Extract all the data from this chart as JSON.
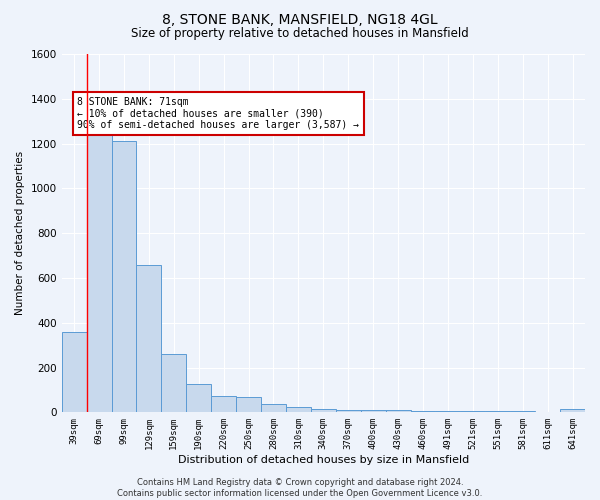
{
  "title": "8, STONE BANK, MANSFIELD, NG18 4GL",
  "subtitle": "Size of property relative to detached houses in Mansfield",
  "xlabel": "Distribution of detached houses by size in Mansfield",
  "ylabel": "Number of detached properties",
  "bar_labels": [
    "39sqm",
    "69sqm",
    "99sqm",
    "129sqm",
    "159sqm",
    "190sqm",
    "220sqm",
    "250sqm",
    "280sqm",
    "310sqm",
    "340sqm",
    "370sqm",
    "400sqm",
    "430sqm",
    "460sqm",
    "491sqm",
    "521sqm",
    "551sqm",
    "581sqm",
    "611sqm",
    "641sqm"
  ],
  "bar_values": [
    360,
    1250,
    1210,
    660,
    260,
    125,
    75,
    70,
    35,
    22,
    15,
    12,
    10,
    9,
    8,
    7,
    6,
    5,
    4,
    3,
    15
  ],
  "bar_color": "#c8d9ed",
  "bar_edge_color": "#5b9bd5",
  "ylim": [
    0,
    1600
  ],
  "yticks": [
    0,
    200,
    400,
    600,
    800,
    1000,
    1200,
    1400,
    1600
  ],
  "annotation_text": "8 STONE BANK: 71sqm\n← 10% of detached houses are smaller (390)\n90% of semi-detached houses are larger (3,587) →",
  "annotation_box_color": "#ffffff",
  "annotation_box_edge": "#cc0000",
  "bg_color": "#eef3fb",
  "grid_color": "#ffffff",
  "footer": "Contains HM Land Registry data © Crown copyright and database right 2024.\nContains public sector information licensed under the Open Government Licence v3.0.",
  "red_line_x": 0.5,
  "title_fontsize": 10,
  "subtitle_fontsize": 8.5
}
